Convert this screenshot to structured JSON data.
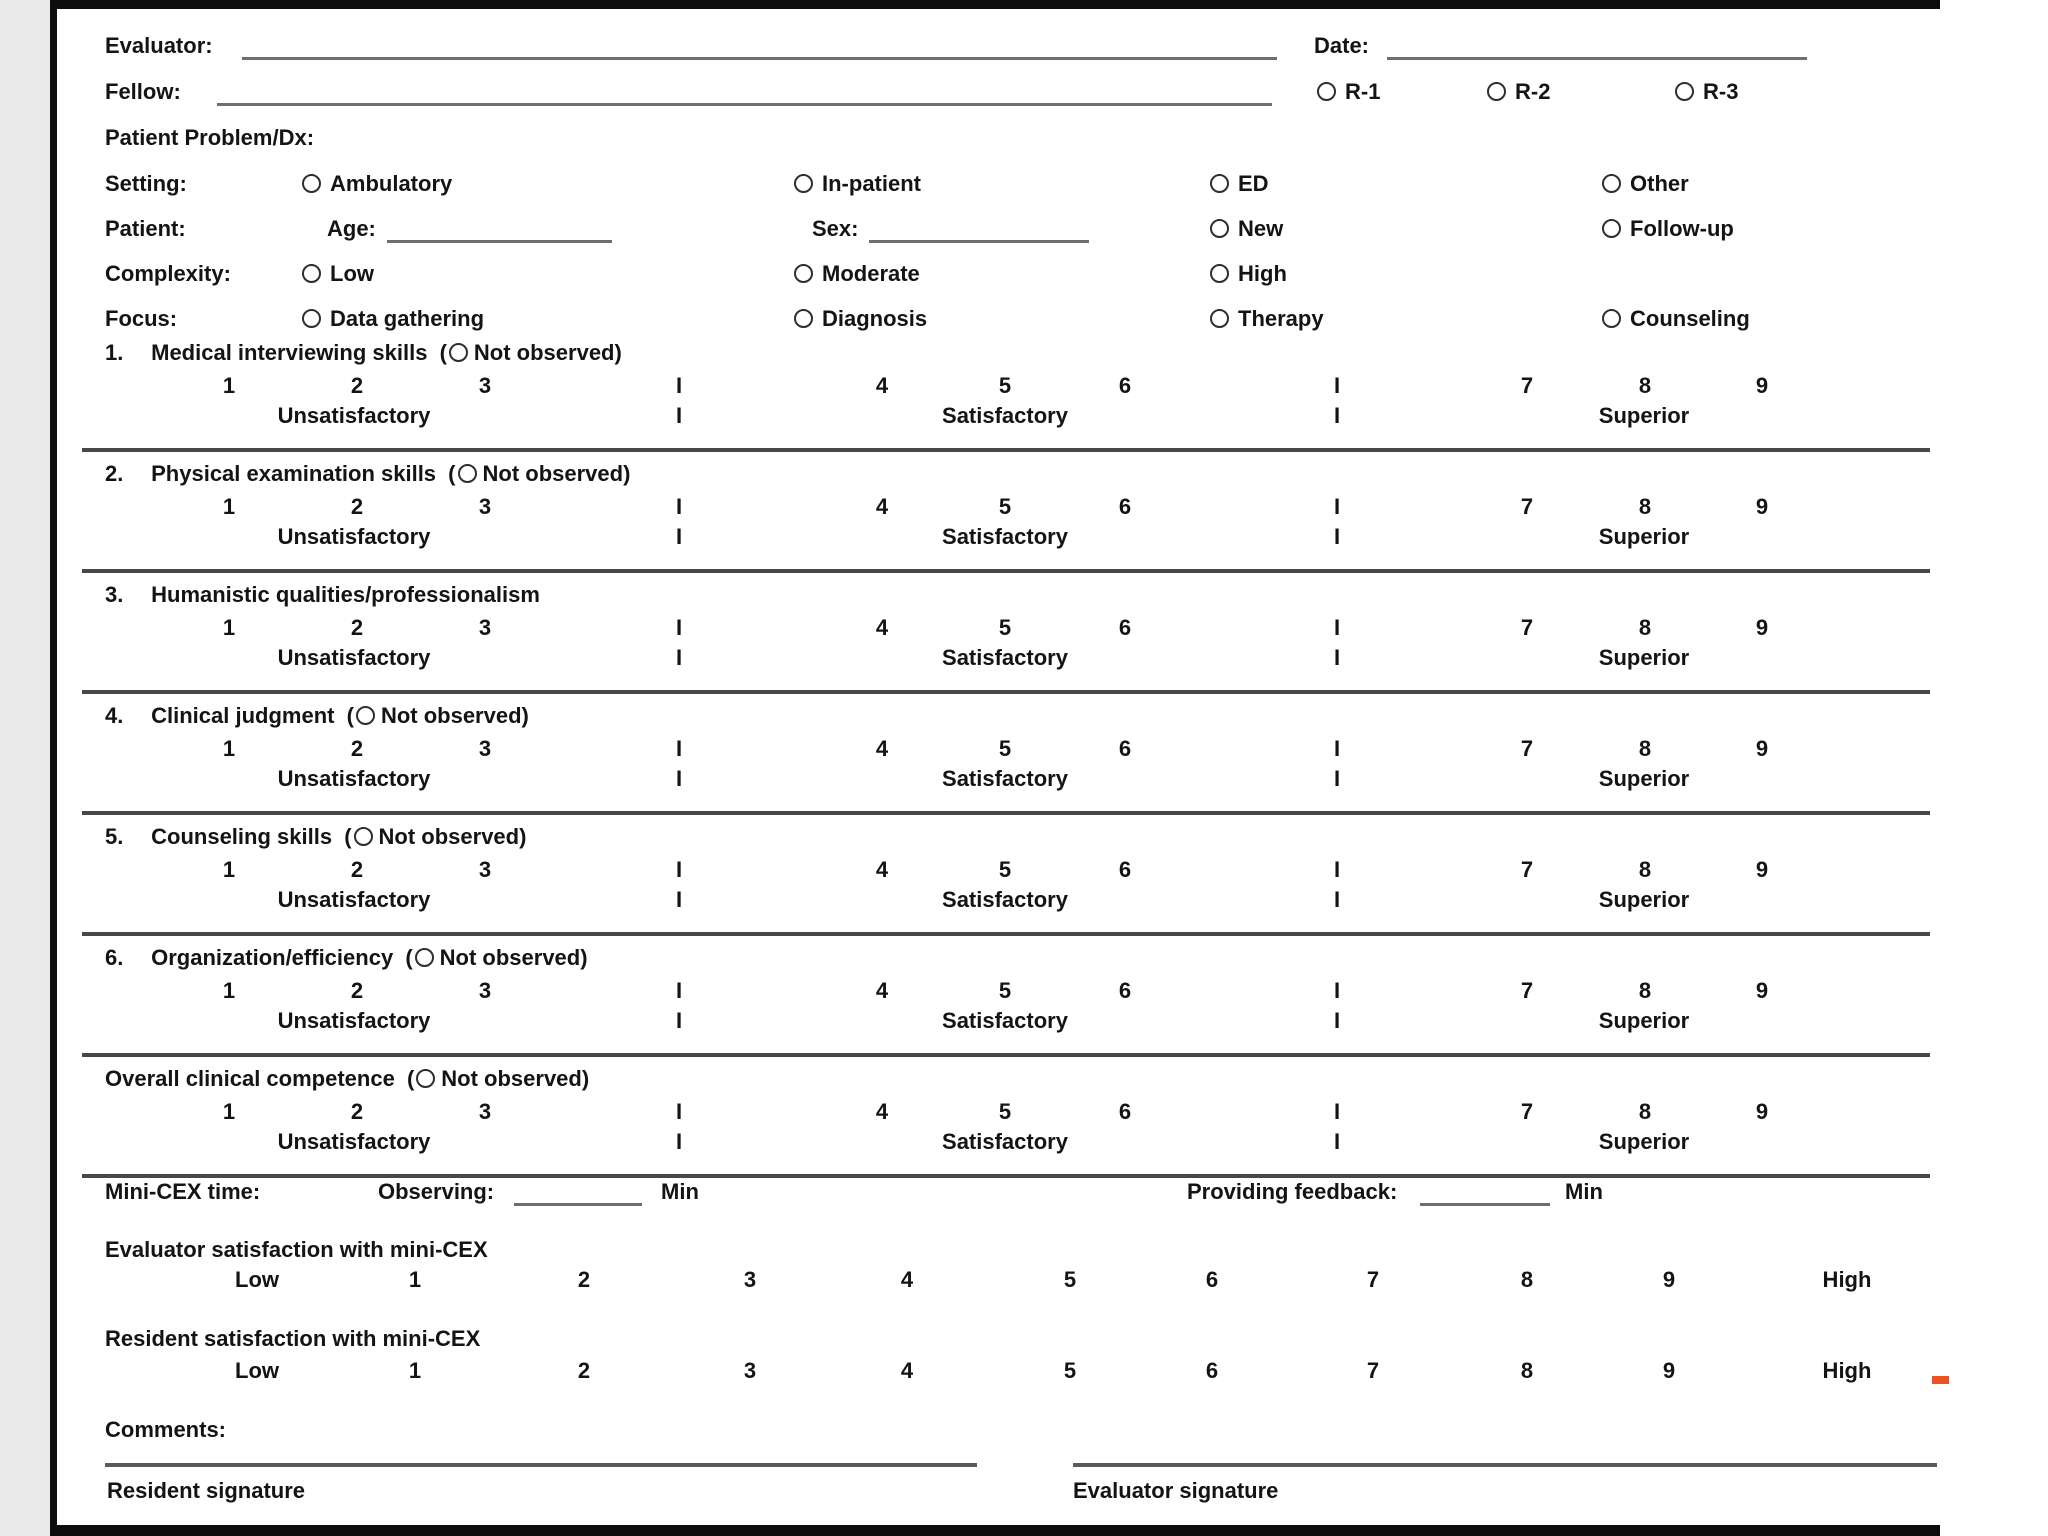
{
  "page": {
    "accent_orange": "#f05123"
  },
  "header": {
    "evaluator_label": "Evaluator:",
    "date_label": "Date:",
    "fellow_label": "Fellow:",
    "year_options": [
      {
        "label": "R-1"
      },
      {
        "label": "R-2"
      },
      {
        "label": "R-3"
      }
    ],
    "patient_problem_label": "Patient Problem/Dx:"
  },
  "encounter": {
    "setting": {
      "label": "Setting:",
      "options": [
        "Ambulatory",
        "In-patient",
        "ED",
        "Other"
      ]
    },
    "patient": {
      "label": "Patient:",
      "age_label": "Age:",
      "sex_label": "Sex:",
      "options": [
        "New",
        "Follow-up"
      ]
    },
    "complexity": {
      "label": "Complexity:",
      "options": [
        "Low",
        "Moderate",
        "High"
      ]
    },
    "focus": {
      "label": "Focus:",
      "options": [
        "Data gathering",
        "Diagnosis",
        "Therapy",
        "Counseling"
      ]
    }
  },
  "labels": {
    "not_observed_prefix": "(",
    "not_observed": "Not observed)"
  },
  "rating_scale": {
    "numbers_low": [
      "1",
      "2",
      "3"
    ],
    "numbers_mid": [
      "4",
      "5",
      "6"
    ],
    "numbers_high": [
      "7",
      "8",
      "9"
    ],
    "separator": "I",
    "low_label": "Unsatisfactory",
    "mid_label": "Satisfactory",
    "high_label": "Superior"
  },
  "skills": [
    {
      "num": "1.",
      "title": "Medical interviewing skills",
      "not_observed": true
    },
    {
      "num": "2.",
      "title": "Physical examination skills",
      "not_observed": true
    },
    {
      "num": "3.",
      "title": "Humanistic qualities/professionalism",
      "not_observed": false
    },
    {
      "num": "4.",
      "title": "Clinical judgment",
      "not_observed": true
    },
    {
      "num": "5.",
      "title": "Counseling skills",
      "not_observed": true
    },
    {
      "num": "6.",
      "title": "Organization/efficiency",
      "not_observed": true
    },
    {
      "num": "",
      "title": "Overall clinical competence",
      "not_observed": true
    }
  ],
  "timing": {
    "label": "Mini-CEX time:",
    "observing_label": "Observing:",
    "observing_unit": "Min",
    "feedback_label": "Providing feedback:",
    "feedback_unit": "Min"
  },
  "satisfaction": {
    "evaluator_label": "Evaluator satisfaction with mini-CEX",
    "resident_label": "Resident satisfaction with mini-CEX",
    "low": "Low",
    "high": "High",
    "scale_numbers": [
      "1",
      "2",
      "3",
      "4",
      "5",
      "6",
      "7",
      "8",
      "9"
    ]
  },
  "footer": {
    "comments_label": "Comments:",
    "resident_signature_label": "Resident signature",
    "evaluator_signature_label": "Evaluator signature"
  }
}
